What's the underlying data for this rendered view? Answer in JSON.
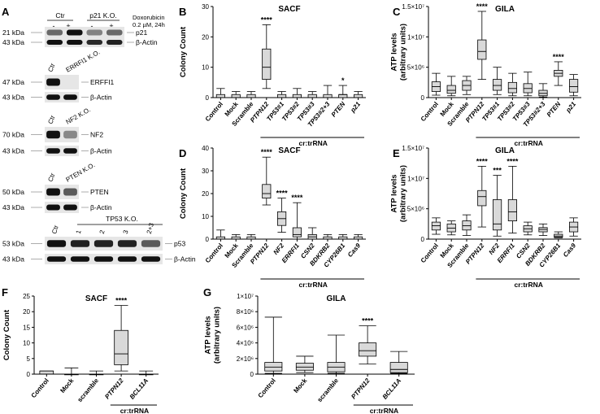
{
  "panel_labels": [
    "A",
    "B",
    "C",
    "D",
    "E",
    "F",
    "G"
  ],
  "western": {
    "header": {
      "groups": [
        "Ctr",
        "p21 K.O."
      ],
      "signs": [
        "-",
        "+",
        "-",
        "+"
      ],
      "treatment": [
        "Doxorubicin",
        "0.2 µM, 24h"
      ]
    },
    "blocks": [
      {
        "id": "p21",
        "top_label": "",
        "bands": [
          {
            "kda": "21 kDa",
            "name": "p21",
            "pattern": [
              0.45,
              1,
              0.3,
              0.45
            ]
          },
          {
            "kda": "43 kDa",
            "name": "β-Actin",
            "pattern": [
              1,
              1,
              0.85,
              0.9
            ]
          }
        ]
      },
      {
        "id": "erffi1",
        "top_label": [
          "Ctr",
          "ERRFI1 K.O."
        ],
        "bands": [
          {
            "kda": "47 kDa",
            "name": "ERFFI1",
            "pattern": [
              1,
              0
            ]
          },
          {
            "kda": "43 kDa",
            "name": "β-Actin",
            "pattern": [
              1,
              1
            ]
          }
        ]
      },
      {
        "id": "nf2",
        "top_label": [
          "Ctr",
          "NF2 K.O."
        ],
        "bands": [
          {
            "kda": "70 kDa",
            "name": "NF2",
            "pattern": [
              1,
              0.25
            ]
          },
          {
            "kda": "43 kDa",
            "name": "β-Actin",
            "pattern": [
              1,
              1
            ]
          }
        ]
      },
      {
        "id": "pten",
        "top_label": [
          "Ctr",
          "PTEN K.O."
        ],
        "bands": [
          {
            "kda": "50 kDa",
            "name": "PTEN",
            "pattern": [
              1,
              0.55
            ]
          },
          {
            "kda": "43 kDa",
            "name": "β-Actin",
            "pattern": [
              1,
              1
            ]
          }
        ]
      },
      {
        "id": "p53",
        "top_label": [
          "Ctr",
          "TP53 K.O."
        ],
        "lanes": [
          "1",
          "2",
          "3",
          "2+3"
        ],
        "bands": [
          {
            "kda": "53 kDa",
            "name": "p53",
            "pattern": [
              1,
              0.9,
              0.9,
              0.9,
              0.55
            ]
          },
          {
            "kda": "43 kDa",
            "name": "β-Actin",
            "pattern": [
              1,
              1,
              1,
              1,
              1
            ]
          }
        ]
      }
    ]
  },
  "chart_data": [
    {
      "panel": "B",
      "type": "box",
      "title": "SACF",
      "ylabel": "Colony Count",
      "xlabel": "cr:trRNA",
      "ylim": [
        0,
        30
      ],
      "yticks": [
        "0",
        "10",
        "20",
        "30"
      ],
      "italic_from": 3,
      "categories": [
        "Control",
        "Mock",
        "Scramble",
        "PTPN12",
        "TP53#1",
        "TP53#2",
        "TP53#3",
        "TP53#2+3",
        "PTEN",
        "p21"
      ],
      "boxes": [
        [
          0,
          0,
          0,
          1,
          3
        ],
        [
          0,
          0,
          0,
          1,
          2
        ],
        [
          0,
          0,
          0,
          1,
          2
        ],
        [
          3,
          6,
          10,
          16,
          24
        ],
        [
          0,
          0,
          0,
          1,
          2
        ],
        [
          0,
          0,
          0,
          1,
          3
        ],
        [
          0,
          0,
          0,
          1,
          2
        ],
        [
          0,
          0,
          0,
          1,
          4
        ],
        [
          0,
          0,
          1,
          1,
          4
        ],
        [
          0,
          0,
          0,
          1,
          2
        ]
      ],
      "annotations": [
        "",
        "",
        "",
        "****",
        "",
        "",
        "",
        "",
        "*",
        ""
      ]
    },
    {
      "panel": "C",
      "type": "box",
      "title": "GILA",
      "ylabel": "ATP levels\n(arbitrary units)",
      "xlabel": "cr:trRNA",
      "ylim": [
        0,
        15000000
      ],
      "yticks": [
        "0",
        "5×10⁶",
        "1×10⁷",
        "1.5×10⁷"
      ],
      "italic_from": 3,
      "categories": [
        "Control",
        "Mock",
        "Scramble",
        "PTPN12",
        "TP53#1",
        "TP53#2",
        "TP53#3",
        "TP53#2+3",
        "PTEN",
        "p21"
      ],
      "boxes": [
        [
          400000,
          1000000,
          1800000,
          2600000,
          4000000
        ],
        [
          300000,
          700000,
          1200000,
          2000000,
          3500000
        ],
        [
          500000,
          1200000,
          2000000,
          2800000,
          3500000
        ],
        [
          3000000,
          6300000,
          7600000,
          9500000,
          14200000
        ],
        [
          500000,
          1200000,
          2000000,
          3000000,
          5000000
        ],
        [
          300000,
          800000,
          1500000,
          2500000,
          4000000
        ],
        [
          300000,
          800000,
          1500000,
          2300000,
          4200000
        ],
        [
          100000,
          300000,
          700000,
          1200000,
          2300000
        ],
        [
          2000000,
          3500000,
          4000000,
          4500000,
          5900000
        ],
        [
          300000,
          900000,
          1800000,
          3000000,
          3800000
        ]
      ],
      "annotations": [
        "",
        "",
        "",
        "****",
        "",
        "",
        "",
        "",
        "****",
        ""
      ]
    },
    {
      "panel": "D",
      "type": "box",
      "title": "SACF",
      "ylabel": "Colony Count",
      "xlabel": "cr:trRNA",
      "ylim": [
        0,
        40
      ],
      "yticks": [
        "0",
        "10",
        "20",
        "30",
        "40"
      ],
      "italic_from": 3,
      "categories": [
        "Control",
        "Mock",
        "Scramble",
        "PTPN12",
        "NF2",
        "ERRFI1",
        "CSN2",
        "BDKRB2",
        "CYP26B1",
        "Cas9"
      ],
      "boxes": [
        [
          0,
          0,
          0,
          1,
          4
        ],
        [
          0,
          0,
          0,
          1,
          2
        ],
        [
          0,
          0,
          0,
          1,
          2
        ],
        [
          15,
          18,
          20,
          24,
          36
        ],
        [
          3,
          6,
          9,
          12,
          18
        ],
        [
          0,
          1,
          2,
          5,
          16
        ],
        [
          0,
          0,
          1,
          2,
          5
        ],
        [
          0,
          0,
          0,
          1,
          2
        ],
        [
          0,
          0,
          0,
          1,
          2
        ],
        [
          0,
          0,
          0,
          1,
          2
        ]
      ],
      "annotations": [
        "",
        "",
        "",
        "****",
        "****",
        "****",
        "",
        "",
        "",
        ""
      ]
    },
    {
      "panel": "E",
      "type": "box",
      "title": "GILA",
      "ylabel": "ATP levels\n(arbitrary units)",
      "xlabel": "cr:trRNA",
      "ylim": [
        0,
        15000000
      ],
      "yticks": [
        "0",
        "5×10⁶",
        "1×10⁷",
        "1.5×10⁷"
      ],
      "italic_from": 3,
      "categories": [
        "Control",
        "Mock",
        "Scramble",
        "PTPN12",
        "NF2",
        "ERRFI1",
        "CSN2",
        "BDKRB2",
        "CYP26B1",
        "Cas9"
      ],
      "boxes": [
        [
          800000,
          1500000,
          2200000,
          2800000,
          3500000
        ],
        [
          700000,
          1200000,
          1800000,
          2500000,
          3000000
        ],
        [
          600000,
          1500000,
          2200000,
          3000000,
          4000000
        ],
        [
          2000000,
          5500000,
          7000000,
          8000000,
          12000000
        ],
        [
          500000,
          1500000,
          2500000,
          6500000,
          10500000
        ],
        [
          1000000,
          3000000,
          4500000,
          6500000,
          12000000
        ],
        [
          700000,
          1200000,
          1700000,
          2200000,
          2800000
        ],
        [
          600000,
          1200000,
          1600000,
          1900000,
          2500000
        ],
        [
          200000,
          300000,
          500000,
          800000,
          1200000
        ],
        [
          500000,
          1200000,
          2000000,
          2800000,
          3500000
        ]
      ],
      "annotations": [
        "",
        "",
        "",
        "****",
        "***",
        "****",
        "",
        "",
        "",
        ""
      ]
    },
    {
      "panel": "F",
      "type": "box",
      "title": "SACF",
      "ylabel": "Colony Count",
      "xlabel": "cr:trRNA",
      "ylim": [
        0,
        25
      ],
      "yticks": [
        "0",
        "5",
        "10",
        "15",
        "20",
        "25"
      ],
      "italic_from": 3,
      "categories": [
        "Control",
        "Mock",
        "scramble",
        "PTPN12",
        "BCL11A"
      ],
      "boxes": [
        [
          0,
          0,
          0,
          1,
          1
        ],
        [
          0,
          0,
          0,
          0,
          2
        ],
        [
          0,
          0,
          0,
          0,
          1
        ],
        [
          1,
          3,
          6.5,
          14,
          22
        ],
        [
          0,
          0,
          0,
          0,
          1
        ]
      ],
      "annotations": [
        "",
        "",
        "",
        "****",
        ""
      ]
    },
    {
      "panel": "G",
      "type": "box",
      "title": "GILA",
      "ylabel": "ATP levels\n(arbitrary units)",
      "xlabel": "cr:trRNA",
      "ylim": [
        0,
        10000000
      ],
      "yticks": [
        "0",
        "2×10⁶",
        "4×10⁶",
        "6×10⁶",
        "8×10⁶",
        "1×10⁷"
      ],
      "italic_from": 3,
      "categories": [
        "Control",
        "Mock",
        "scramble",
        "PTPN12",
        "BCL11A"
      ],
      "boxes": [
        [
          100000,
          400000,
          900000,
          1500000,
          7300000
        ],
        [
          200000,
          500000,
          900000,
          1400000,
          2300000
        ],
        [
          100000,
          300000,
          900000,
          1500000,
          5000000
        ],
        [
          1300000,
          2300000,
          3000000,
          4000000,
          6200000
        ],
        [
          100000,
          200000,
          600000,
          1500000,
          2900000
        ]
      ],
      "annotations": [
        "",
        "",
        "",
        "****",
        ""
      ]
    }
  ]
}
